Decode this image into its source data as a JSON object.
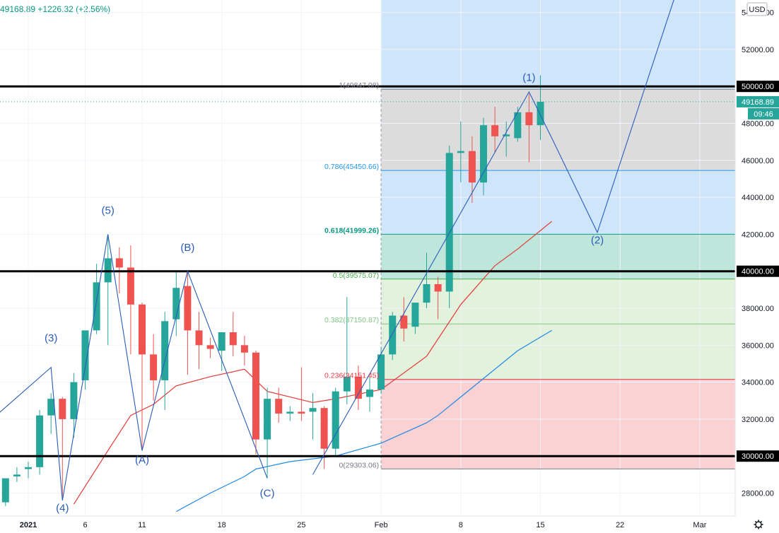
{
  "header": {
    "price": "49168.89",
    "change": "+1226.32",
    "change_pct": "(+2.56%)",
    "currency": "USD"
  },
  "price_badge": {
    "price": "49168.89",
    "countdown": "09:46"
  },
  "settings_icon": "gear-icon",
  "colors": {
    "up": "#26a69a",
    "down": "#ef5350",
    "wave": "#2962ff",
    "ma_fast": "#e53935",
    "ma_slow": "#1e88e5",
    "current": "#26a69a"
  },
  "chart_data": {
    "type": "candlestick",
    "x_axis": {
      "labels": [
        {
          "day": 1,
          "label": "2021"
        },
        {
          "day": 6,
          "label": "6"
        },
        {
          "day": 11,
          "label": "11"
        },
        {
          "day": 18,
          "label": "18"
        },
        {
          "day": 25,
          "label": "25"
        },
        {
          "day": 32,
          "label": "Feb"
        },
        {
          "day": 39,
          "label": "8"
        },
        {
          "day": 46,
          "label": "15"
        },
        {
          "day": 53,
          "label": "22"
        },
        {
          "day": 60,
          "label": "Mar"
        }
      ]
    },
    "y_axis": {
      "range": [
        26800,
        55000
      ],
      "ticks": [
        "28000.00",
        "30000.00",
        "32000.00",
        "34000.00",
        "36000.00",
        "38000.00",
        "40000.00",
        "42000.00",
        "44000.00",
        "46000.00",
        "48000.00",
        "50000.00",
        "52000.00",
        "54000.00"
      ],
      "highlighted": [
        "50000.00",
        "40000.00",
        "30000.00"
      ]
    },
    "candles": [
      {
        "day": -1,
        "o": 27500,
        "h": 28700,
        "l": 27300,
        "c": 28800
      },
      {
        "day": 0,
        "o": 28900,
        "h": 29400,
        "l": 28600,
        "c": 29000
      },
      {
        "day": 1,
        "o": 29300,
        "h": 29700,
        "l": 28800,
        "c": 29400
      },
      {
        "day": 2,
        "o": 29400,
        "h": 32500,
        "l": 29000,
        "c": 32200
      },
      {
        "day": 3,
        "o": 32200,
        "h": 33400,
        "l": 31200,
        "c": 33100
      },
      {
        "day": 4,
        "o": 33100,
        "h": 33200,
        "l": 27800,
        "c": 32000
      },
      {
        "day": 5,
        "o": 32000,
        "h": 34500,
        "l": 31000,
        "c": 34000
      },
      {
        "day": 6,
        "o": 34100,
        "h": 36700,
        "l": 33600,
        "c": 36800
      },
      {
        "day": 7,
        "o": 36800,
        "h": 40400,
        "l": 36600,
        "c": 39400
      },
      {
        "day": 8,
        "o": 39400,
        "h": 41900,
        "l": 36000,
        "c": 40700
      },
      {
        "day": 9,
        "o": 40700,
        "h": 41300,
        "l": 38800,
        "c": 40200
      },
      {
        "day": 10,
        "o": 40200,
        "h": 41400,
        "l": 35500,
        "c": 38200
      },
      {
        "day": 11,
        "o": 38200,
        "h": 38300,
        "l": 30300,
        "c": 35500
      },
      {
        "day": 12,
        "o": 35500,
        "h": 36600,
        "l": 33000,
        "c": 34100
      },
      {
        "day": 13,
        "o": 34100,
        "h": 37800,
        "l": 32500,
        "c": 37300
      },
      {
        "day": 14,
        "o": 37400,
        "h": 40000,
        "l": 36500,
        "c": 39100
      },
      {
        "day": 15,
        "o": 39200,
        "h": 40000,
        "l": 34400,
        "c": 36800
      },
      {
        "day": 16,
        "o": 36800,
        "h": 37800,
        "l": 34700,
        "c": 36000
      },
      {
        "day": 17,
        "o": 36000,
        "h": 36400,
        "l": 35300,
        "c": 35800
      },
      {
        "day": 18,
        "o": 35700,
        "h": 36500,
        "l": 34600,
        "c": 36700
      },
      {
        "day": 19,
        "o": 36700,
        "h": 37800,
        "l": 35400,
        "c": 36000
      },
      {
        "day": 20,
        "o": 36000,
        "h": 36500,
        "l": 34900,
        "c": 35600
      },
      {
        "day": 21,
        "o": 35600,
        "h": 35700,
        "l": 30100,
        "c": 30900
      },
      {
        "day": 22,
        "o": 30900,
        "h": 33700,
        "l": 28800,
        "c": 33100
      },
      {
        "day": 23,
        "o": 33100,
        "h": 33700,
        "l": 31800,
        "c": 32300
      },
      {
        "day": 24,
        "o": 32300,
        "h": 32700,
        "l": 31900,
        "c": 32400
      },
      {
        "day": 25,
        "o": 32400,
        "h": 34800,
        "l": 31900,
        "c": 32300
      },
      {
        "day": 26,
        "o": 32400,
        "h": 33400,
        "l": 30900,
        "c": 32600
      },
      {
        "day": 27,
        "o": 32600,
        "h": 32700,
        "l": 29300,
        "c": 30400
      },
      {
        "day": 28,
        "o": 30400,
        "h": 33700,
        "l": 30000,
        "c": 33500
      },
      {
        "day": 29,
        "o": 33500,
        "h": 38600,
        "l": 32800,
        "c": 34300
      },
      {
        "day": 30,
        "o": 34300,
        "h": 34900,
        "l": 32500,
        "c": 33100
      },
      {
        "day": 31,
        "o": 33200,
        "h": 34300,
        "l": 32400,
        "c": 33600
      },
      {
        "day": 32,
        "o": 33600,
        "h": 35900,
        "l": 33400,
        "c": 35500
      },
      {
        "day": 33,
        "o": 35500,
        "h": 37800,
        "l": 35200,
        "c": 37600
      },
      {
        "day": 34,
        "o": 37600,
        "h": 38600,
        "l": 36200,
        "c": 36900
      },
      {
        "day": 35,
        "o": 37000,
        "h": 38300,
        "l": 36600,
        "c": 38300
      },
      {
        "day": 36,
        "o": 38300,
        "h": 41000,
        "l": 38000,
        "c": 39300
      },
      {
        "day": 37,
        "o": 39300,
        "h": 39700,
        "l": 37400,
        "c": 38900
      },
      {
        "day": 38,
        "o": 38900,
        "h": 46800,
        "l": 38000,
        "c": 46400
      },
      {
        "day": 39,
        "o": 46400,
        "h": 48100,
        "l": 44800,
        "c": 46500
      },
      {
        "day": 40,
        "o": 46500,
        "h": 47300,
        "l": 43700,
        "c": 44800
      },
      {
        "day": 41,
        "o": 44800,
        "h": 48300,
        "l": 44100,
        "c": 47900
      },
      {
        "day": 42,
        "o": 47900,
        "h": 48900,
        "l": 46400,
        "c": 47300
      },
      {
        "day": 43,
        "o": 47300,
        "h": 48100,
        "l": 46200,
        "c": 47400
      },
      {
        "day": 44,
        "o": 47200,
        "h": 48900,
        "l": 47000,
        "c": 48600
      },
      {
        "day": 45,
        "o": 48600,
        "h": 49600,
        "l": 45900,
        "c": 47900
      },
      {
        "day": 46,
        "o": 47900,
        "h": 50600,
        "l": 47100,
        "c": 49168.89
      }
    ],
    "ma_fast": [
      {
        "day": 5,
        "v": 27400
      },
      {
        "day": 8,
        "v": 30300
      },
      {
        "day": 10,
        "v": 32200
      },
      {
        "day": 12,
        "v": 32800
      },
      {
        "day": 14,
        "v": 33800
      },
      {
        "day": 17,
        "v": 34300
      },
      {
        "day": 20,
        "v": 34700
      },
      {
        "day": 22,
        "v": 33500
      },
      {
        "day": 26,
        "v": 32900
      },
      {
        "day": 28,
        "v": 33100
      },
      {
        "day": 32,
        "v": 33600
      },
      {
        "day": 36,
        "v": 35400
      },
      {
        "day": 39,
        "v": 38200
      },
      {
        "day": 42,
        "v": 40300
      },
      {
        "day": 44,
        "v": 41200
      },
      {
        "day": 47,
        "v": 42700
      }
    ],
    "ma_slow": [
      {
        "day": 14,
        "v": 27000
      },
      {
        "day": 17,
        "v": 28000
      },
      {
        "day": 20,
        "v": 28900
      },
      {
        "day": 21,
        "v": 29300
      },
      {
        "day": 24,
        "v": 29700
      },
      {
        "day": 28,
        "v": 30000
      },
      {
        "day": 32,
        "v": 30700
      },
      {
        "day": 36,
        "v": 31800
      },
      {
        "day": 37,
        "v": 32200
      },
      {
        "day": 41,
        "v": 34200
      },
      {
        "day": 44,
        "v": 35700
      },
      {
        "day": 47,
        "v": 36800
      }
    ],
    "fibonacci": {
      "start_day": 32,
      "levels": [
        {
          "label": "1(49847.08)",
          "value": 49847.08,
          "color": "#787b86"
        },
        {
          "label": "0.786(45450.66)",
          "value": 45450.66,
          "color": "#2196f3"
        },
        {
          "label": "0.618(41999.26)",
          "value": 41999.26,
          "color": "#089981"
        },
        {
          "label": "0.5(39575.07)",
          "value": 39575.07,
          "color": "#4caf50"
        },
        {
          "label": "0.382(37150.87)",
          "value": 37150.87,
          "color": "#81c784"
        },
        {
          "label": "0.236(34151.45)",
          "value": 34151.45,
          "color": "#f23645"
        },
        {
          "label": "0(29303.06)",
          "value": 29303.06,
          "color": "#787b86"
        }
      ],
      "zones": [
        {
          "from": 45450.66,
          "to": 49847.08,
          "color": "#dcdcdc"
        },
        {
          "from": 41999.26,
          "to": 45450.66,
          "color": "#cfe6fa"
        },
        {
          "from": 39575.07,
          "to": 41999.26,
          "color": "#bfe6da"
        },
        {
          "from": 34151.45,
          "to": 39575.07,
          "color": "#e2f2dd"
        },
        {
          "from": 29303.06,
          "to": 34151.45,
          "color": "#fbd2d3"
        }
      ],
      "sky_top": 55000
    },
    "horizontal_lines": [
      50000,
      40000,
      30000
    ],
    "current_price": 49168.89,
    "waves": {
      "path_a": [
        {
          "day": -2,
          "v": 32100
        },
        {
          "day": 3,
          "v": 34800
        },
        {
          "day": 4,
          "v": 27600
        },
        {
          "day": 8,
          "v": 42000
        },
        {
          "day": 11,
          "v": 30300
        },
        {
          "day": 15,
          "v": 40000
        },
        {
          "day": 22,
          "v": 28800
        }
      ],
      "path_b": [
        {
          "day": 26,
          "v": 29000
        },
        {
          "day": 45,
          "v": 49700
        },
        {
          "day": 47,
          "v": 47200
        },
        {
          "day": 51,
          "v": 42100
        },
        {
          "day": 58,
          "v": 55200
        }
      ],
      "labels": [
        {
          "text": "(3)",
          "day": 3,
          "v": 36200
        },
        {
          "text": "(4)",
          "day": 4,
          "v": 27000
        },
        {
          "text": "(5)",
          "day": 8,
          "v": 43100
        },
        {
          "text": "(A)",
          "day": 11,
          "v": 29600
        },
        {
          "text": "(B)",
          "day": 15,
          "v": 41100
        },
        {
          "text": "(C)",
          "day": 22,
          "v": 27800
        },
        {
          "text": "(1)",
          "day": 45,
          "v": 50300
        },
        {
          "text": "(2)",
          "day": 51,
          "v": 41500
        }
      ]
    }
  }
}
